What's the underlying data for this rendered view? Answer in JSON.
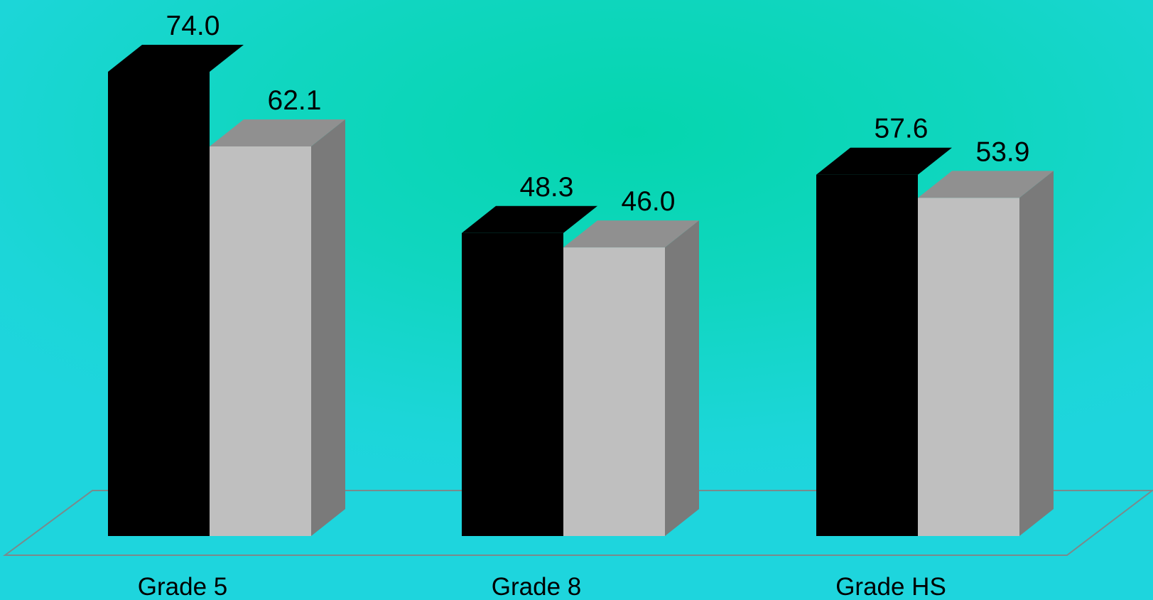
{
  "chart_data": {
    "type": "bar",
    "title": "",
    "xlabel": "",
    "ylabel": "",
    "categories": [
      "Grade 5",
      "Grade 8",
      "Grade HS"
    ],
    "series": [
      {
        "values": [
          74.0,
          48.3,
          57.6
        ],
        "value_labels": [
          "74.0",
          "48.3",
          "57.6"
        ]
      },
      {
        "values": [
          62.1,
          46.0,
          53.9
        ],
        "value_labels": [
          "62.1",
          "46.0",
          "53.9"
        ]
      }
    ],
    "ylim": [
      0,
      74.0
    ],
    "grid": false,
    "legend": "none",
    "style": "3d"
  },
  "colors": {
    "series_1_front": "#000000",
    "series_2_front": "#bfbfbf",
    "series_2_side": "#7a7a7a",
    "series_2_top": "#909090",
    "floor_edge": "#7a8a8c"
  }
}
